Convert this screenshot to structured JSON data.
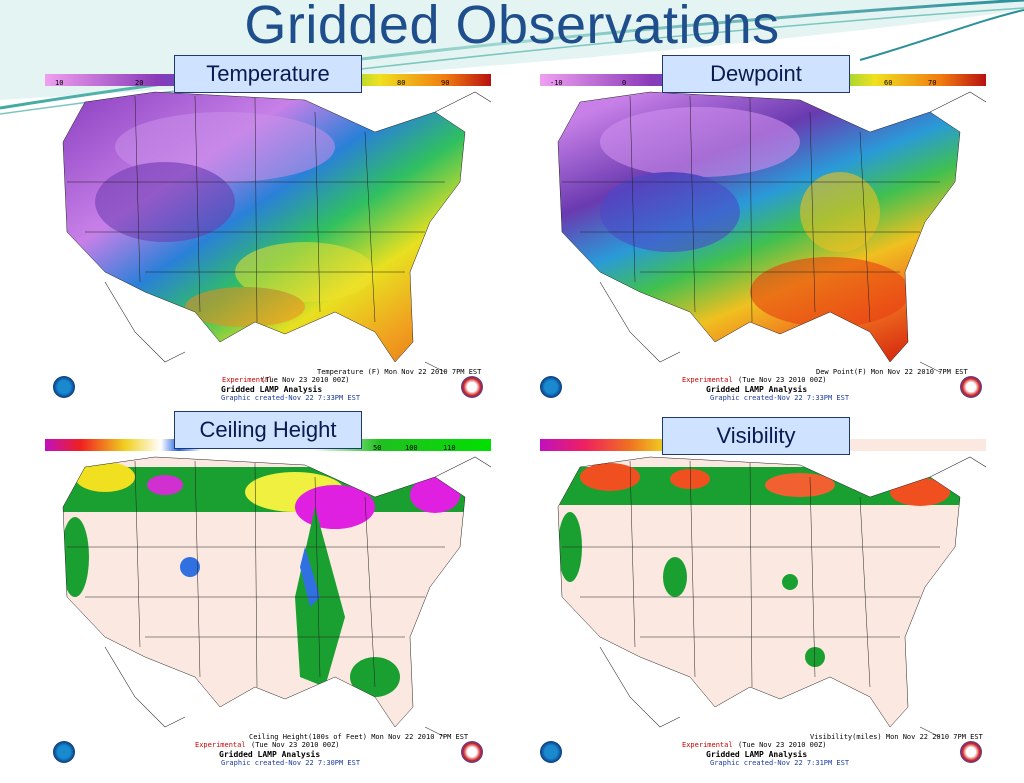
{
  "slide": {
    "title": "Gridded Observations"
  },
  "panels": [
    {
      "id": "temperature",
      "label": "Temperature",
      "legend_ticks": [
        "10",
        "20",
        "80",
        "90"
      ],
      "map_caption": "Temperature (F) Mon Nov 22 2010  7PM EST",
      "footer": {
        "experimental": "Experimental",
        "run": "(Tue Nov 23 2010 00Z)",
        "product": "Gridded LAMP Analysis",
        "created": "Graphic created-Nov 22  7:33PM EST"
      }
    },
    {
      "id": "dewpoint",
      "label": "Dewpoint",
      "legend_ticks": [
        "-10",
        "0",
        "60",
        "70"
      ],
      "map_caption": "Dew Point(F) Mon Nov 22 2010  7PM EST",
      "footer": {
        "experimental": "Experimental",
        "run": "(Tue Nov 23 2010 00Z)",
        "product": "Gridded LAMP Analysis",
        "created": "Graphic created-Nov 22  7:33PM EST"
      }
    },
    {
      "id": "ceiling",
      "label": "Ceiling Height",
      "legend_ticks": [
        "50",
        "100",
        "110"
      ],
      "map_caption": "Ceiling Height(100s of Feet) Mon Nov 22 2010  7PM EST",
      "footer": {
        "experimental": "Experimental",
        "run": "(Tue Nov 23 2010 00Z)",
        "product": "Gridded LAMP Analysis",
        "created": "Graphic created-Nov 22  7:30PM EST"
      }
    },
    {
      "id": "visibility",
      "label": "Visibility",
      "legend_ticks": [],
      "map_caption": "Visibility(miles) Mon Nov 22 2010  7PM EST",
      "footer": {
        "experimental": "Experimental",
        "run": "(Tue Nov 23 2010 00Z)",
        "product": "Gridded LAMP Analysis",
        "created": "Graphic created-Nov 22  7:31PM EST"
      }
    }
  ]
}
